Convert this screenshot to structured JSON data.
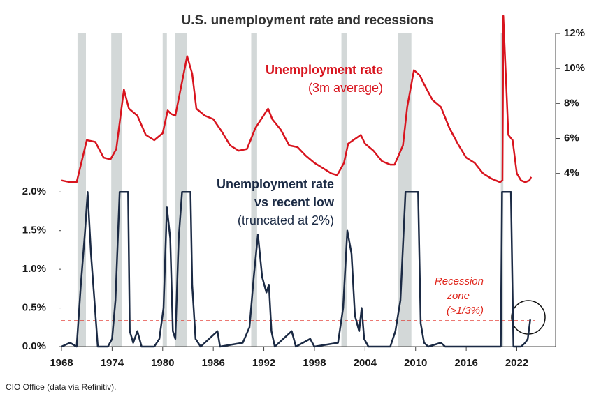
{
  "chart_data": {
    "type": "line",
    "title": "U.S. unemployment rate and recessions",
    "source": "CIO Office (data via Refinitiv).",
    "xlim": [
      1968,
      2026.6
    ],
    "xticks": [
      1968,
      1974,
      1980,
      1986,
      1992,
      1998,
      2004,
      2010,
      2016,
      2022
    ],
    "ylim": [
      0,
      4.05
    ],
    "yticks": [
      {
        "value": 0,
        "label": "0.0%"
      },
      {
        "value": 0.5,
        "label": "0.5%"
      },
      {
        "value": 1,
        "label": "1.0%"
      },
      {
        "value": 1.5,
        "label": "1.5%"
      },
      {
        "value": 2,
        "label": "2.0%"
      }
    ],
    "y2lim": [
      -5.9,
      12
    ],
    "y2ticks": [
      {
        "value": 4,
        "label": "4%"
      },
      {
        "value": 6,
        "label": "6%"
      },
      {
        "value": 8,
        "label": "8%"
      },
      {
        "value": 10,
        "label": "10%"
      },
      {
        "value": 12,
        "label": "12%"
      }
    ],
    "recessions": [
      [
        1969.9,
        1970.9
      ],
      [
        1973.9,
        1975.2
      ],
      [
        1980.0,
        1980.5
      ],
      [
        1981.5,
        1982.9
      ],
      [
        1990.5,
        1991.2
      ],
      [
        2001.2,
        2001.9
      ],
      [
        2007.9,
        2009.5
      ],
      [
        2020.1,
        2020.4
      ]
    ],
    "recession_color": "#d3d8d8",
    "threshold": 0.333,
    "threshold_color": "#e0281e",
    "annotation": [
      "Recession",
      "zone",
      "(>1/3%)"
    ],
    "series": [
      {
        "label_lines": [
          "Unemployment rate",
          "(3m average)"
        ],
        "color": "#d8141e",
        "axis": "y2",
        "x": [
          1968,
          1969,
          1969.8,
          1970.5,
          1971,
          1972,
          1973,
          1973.8,
          1974.5,
          1975.4,
          1976,
          1977,
          1978,
          1979,
          1980,
          1980.6,
          1981,
          1981.5,
          1982.9,
          1983.5,
          1984,
          1985,
          1986,
          1987,
          1988,
          1989,
          1990,
          1991,
          1992.5,
          1993,
          1994,
          1995,
          1996,
          1997,
          1998,
          1999,
          2000,
          2000.7,
          2001.5,
          2002,
          2003.5,
          2004,
          2005,
          2006,
          2007,
          2007.5,
          2008.5,
          2009,
          2009.8,
          2010.5,
          2011,
          2012,
          2013,
          2014,
          2015,
          2016,
          2017,
          2018,
          2019,
          2020,
          2020.3,
          2020.4,
          2021,
          2021.5,
          2022,
          2022.5,
          2023,
          2023.5,
          2023.7
        ],
        "values": [
          3.6,
          3.5,
          3.5,
          4.9,
          5.9,
          5.8,
          4.9,
          4.8,
          5.4,
          8.8,
          7.7,
          7.3,
          6.2,
          5.9,
          6.3,
          7.6,
          7.4,
          7.3,
          10.7,
          9.7,
          7.7,
          7.3,
          7.1,
          6.4,
          5.6,
          5.3,
          5.4,
          6.6,
          7.7,
          7.1,
          6.5,
          5.6,
          5.5,
          5.0,
          4.6,
          4.3,
          4.0,
          3.9,
          4.6,
          5.7,
          6.2,
          5.7,
          5.3,
          4.7,
          4.5,
          4.5,
          5.6,
          7.8,
          9.9,
          9.6,
          9.1,
          8.2,
          7.8,
          6.6,
          5.7,
          4.9,
          4.6,
          4.0,
          3.7,
          3.5,
          3.6,
          13.0,
          6.2,
          5.9,
          4.0,
          3.6,
          3.5,
          3.6,
          3.8
        ]
      },
      {
        "label_lines": [
          "Unemployment rate",
          "vs recent low",
          "(truncated at 2%)"
        ],
        "color": "#1b2a44",
        "axis": "y",
        "x": [
          1968,
          1969,
          1969.8,
          1970.3,
          1970.8,
          1971.1,
          1971.5,
          1971.9,
          1972.3,
          1973.5,
          1974,
          1974.4,
          1974.9,
          1975.9,
          1976.1,
          1976.5,
          1977,
          1977.5,
          1979,
          1979.6,
          1980.1,
          1980.5,
          1980.9,
          1981.2,
          1981.5,
          1981.9,
          1982.3,
          1983.3,
          1983.5,
          1983.9,
          1984.5,
          1986.5,
          1986.8,
          1989.5,
          1990.3,
          1990.8,
          1991.3,
          1991.8,
          1992.3,
          1992.6,
          1992.9,
          1993.3,
          1995.3,
          1995.8,
          1997.5,
          1998,
          2000.8,
          2001.4,
          2001.9,
          2002.4,
          2002.8,
          2003.3,
          2003.6,
          2003.9,
          2004.4,
          2007,
          2007.6,
          2008.2,
          2008.8,
          2010.3,
          2010.6,
          2011,
          2011.5,
          2013,
          2013.5,
          2020.1,
          2020.25,
          2021.3,
          2021.6,
          2022.5,
          2023,
          2023.3,
          2023.6
        ],
        "values": [
          0,
          0.05,
          0,
          0.8,
          1.5,
          2.0,
          1.2,
          0.6,
          0,
          0,
          0.1,
          0.6,
          2.0,
          2.0,
          0.2,
          0.05,
          0.2,
          0,
          0,
          0.1,
          0.5,
          1.8,
          1.4,
          0.2,
          0.1,
          1.4,
          2.0,
          2.0,
          0.8,
          0.1,
          0,
          0.2,
          0,
          0.05,
          0.25,
          0.9,
          1.45,
          0.9,
          0.7,
          0.8,
          0.2,
          0,
          0.2,
          0,
          0.1,
          0,
          0.05,
          0.5,
          1.5,
          1.2,
          0.4,
          0.2,
          0.5,
          0.1,
          0,
          0,
          0.2,
          0.6,
          2.0,
          2.0,
          0.3,
          0.05,
          0,
          0.05,
          0,
          0,
          2.0,
          2.0,
          0,
          0,
          0.05,
          0.1,
          0.35
        ]
      }
    ]
  }
}
